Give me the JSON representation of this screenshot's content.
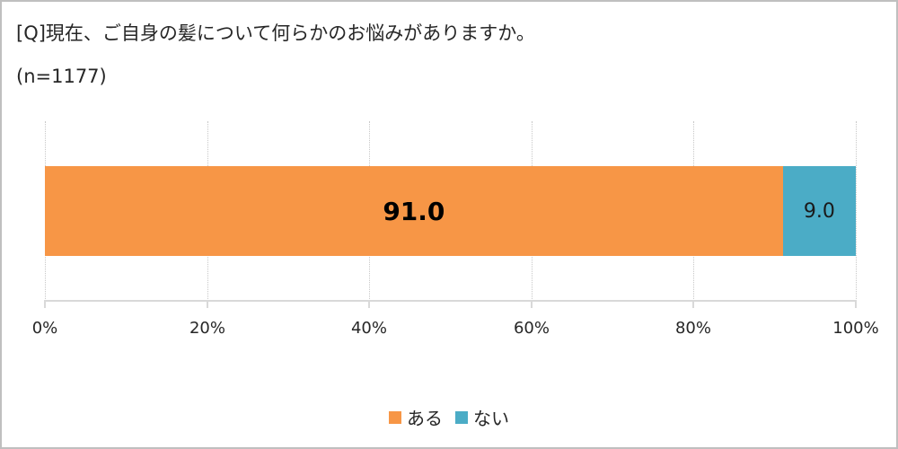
{
  "chart_data": {
    "type": "bar",
    "orientation": "horizontal",
    "stacked": true,
    "title": "[Q]現在、ご自身の髪について何らかのお悩みがありますか。",
    "subtitle": "(n=1177)",
    "categories": [
      ""
    ],
    "series": [
      {
        "name": "ある",
        "values": [
          91.0
        ],
        "color": "#f79646",
        "label": "91.0"
      },
      {
        "name": "ない",
        "values": [
          9.0
        ],
        "color": "#4bacc6",
        "label": "9.0"
      }
    ],
    "xlabel": "",
    "ylabel": "",
    "xlim": [
      0,
      100
    ],
    "x_ticks": [
      "0%",
      "20%",
      "40%",
      "60%",
      "80%",
      "100%"
    ],
    "grid": true,
    "legend_position": "bottom"
  },
  "header": {
    "title": "[Q]現在、ご自身の髪について何らかのお悩みがありますか。",
    "subtitle": "(n=1177)"
  },
  "axis": {
    "ticks": [
      "0%",
      "20%",
      "40%",
      "60%",
      "80%",
      "100%"
    ]
  },
  "bars": {
    "yes_label": "91.0",
    "no_label": "9.0"
  },
  "legend": {
    "items": [
      {
        "label": "ある",
        "color": "#f79646"
      },
      {
        "label": "ない",
        "color": "#4bacc6"
      }
    ]
  }
}
